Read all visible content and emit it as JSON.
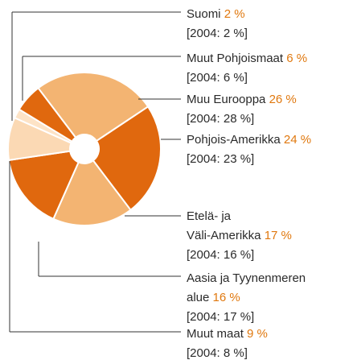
{
  "chart_data": {
    "type": "pie",
    "categories": [
      [
        "Suomi"
      ],
      [
        "Muut Pohjoismaat"
      ],
      [
        "Muu Eurooppa"
      ],
      [
        "Pohjois-Amerikka"
      ],
      [
        "Etelä- ja",
        "Väli-Amerikka"
      ],
      [
        "Aasia ja Tyynenmeren",
        "alue"
      ],
      [
        "Muut maat"
      ]
    ],
    "values": [
      2,
      6,
      26,
      24,
      17,
      16,
      9
    ],
    "value_labels": [
      "2 %",
      "6 %",
      "26 %",
      "24 %",
      "17 %",
      "16 %",
      "9 %"
    ],
    "notes": [
      "[2004: 2 %]",
      "[2004: 6 %]",
      "[2004: 28 %]",
      "[2004: 23 %]",
      "[2004: 16 %]",
      "[2004: 17 %]",
      "[2004: 8 %]"
    ],
    "colors": [
      "#fde3c6",
      "#e0680e",
      "#f3b472",
      "#e0680e",
      "#f3b472",
      "#e0680e",
      "#fbd9b4"
    ]
  }
}
